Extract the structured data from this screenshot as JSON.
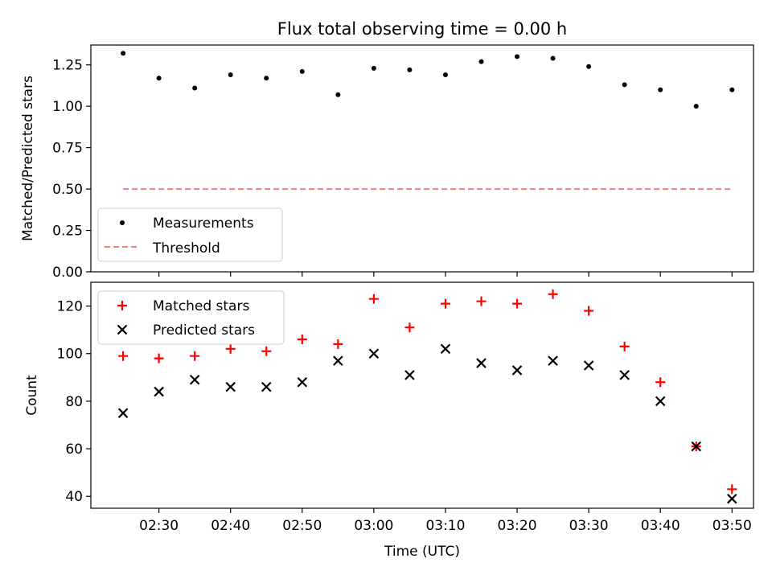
{
  "chart_data": [
    {
      "type": "scatter",
      "title": "Flux total observing time = 0.00 h",
      "xlabel": "",
      "ylabel": "Matched/Predicted stars",
      "ylim": [
        0,
        1.37
      ],
      "yticks": [
        0.0,
        0.25,
        0.5,
        0.75,
        1.0,
        1.25
      ],
      "ytick_labels": [
        "0.00",
        "0.25",
        "0.50",
        "0.75",
        "1.00",
        "1.25"
      ],
      "xlim": [
        "02:20:30",
        "03:53:00"
      ],
      "xticks": [
        "02:30",
        "02:40",
        "02:50",
        "03:00",
        "03:10",
        "03:20",
        "03:30",
        "03:40",
        "03:50"
      ],
      "xtick_labels_visible": false,
      "legend": "lower-left",
      "grid": false,
      "series": [
        {
          "name": "Measurements",
          "marker": "dot",
          "color": "#000000",
          "x": [
            "02:25",
            "02:30",
            "02:35",
            "02:40",
            "02:45",
            "02:50",
            "02:55",
            "03:00",
            "03:05",
            "03:10",
            "03:15",
            "03:20",
            "03:25",
            "03:30",
            "03:35",
            "03:40",
            "03:45",
            "03:50"
          ],
          "y": [
            1.32,
            1.17,
            1.11,
            1.19,
            1.17,
            1.21,
            1.07,
            1.23,
            1.22,
            1.19,
            1.27,
            1.3,
            1.29,
            1.24,
            1.13,
            1.1,
            1.0,
            1.1
          ]
        },
        {
          "name": "Threshold",
          "marker": "dashed-line",
          "color": "#f08080",
          "x": [
            "02:25",
            "03:50"
          ],
          "y": [
            0.5,
            0.5
          ]
        }
      ]
    },
    {
      "type": "scatter",
      "title": "",
      "xlabel": "Time (UTC)",
      "ylabel": "Count",
      "ylim": [
        35,
        130
      ],
      "yticks": [
        40,
        60,
        80,
        100,
        120
      ],
      "ytick_labels": [
        "40",
        "60",
        "80",
        "100",
        "120"
      ],
      "xlim": [
        "02:20:30",
        "03:53:00"
      ],
      "xticks": [
        "02:30",
        "02:40",
        "02:50",
        "03:00",
        "03:10",
        "03:20",
        "03:30",
        "03:40",
        "03:50"
      ],
      "xtick_labels": [
        "02:30",
        "02:40",
        "02:50",
        "03:00",
        "03:10",
        "03:20",
        "03:30",
        "03:40",
        "03:50"
      ],
      "legend": "top-left",
      "grid": false,
      "series": [
        {
          "name": "Matched stars",
          "marker": "plus",
          "color": "#ff0000",
          "x": [
            "02:25",
            "02:30",
            "02:35",
            "02:40",
            "02:45",
            "02:50",
            "02:55",
            "03:00",
            "03:05",
            "03:10",
            "03:15",
            "03:20",
            "03:25",
            "03:30",
            "03:35",
            "03:40",
            "03:45",
            "03:50"
          ],
          "y": [
            99,
            98,
            99,
            102,
            101,
            106,
            104,
            123,
            111,
            121,
            122,
            121,
            125,
            118,
            103,
            88,
            61,
            43
          ]
        },
        {
          "name": "Predicted stars",
          "marker": "x",
          "color": "#000000",
          "x": [
            "02:25",
            "02:30",
            "02:35",
            "02:40",
            "02:45",
            "02:50",
            "02:55",
            "03:00",
            "03:05",
            "03:10",
            "03:15",
            "03:20",
            "03:25",
            "03:30",
            "03:35",
            "03:40",
            "03:45",
            "03:50"
          ],
          "y": [
            75,
            84,
            89,
            86,
            86,
            88,
            97,
            100,
            91,
            102,
            96,
            93,
            97,
            95,
            91,
            80,
            61,
            39
          ]
        }
      ]
    }
  ]
}
